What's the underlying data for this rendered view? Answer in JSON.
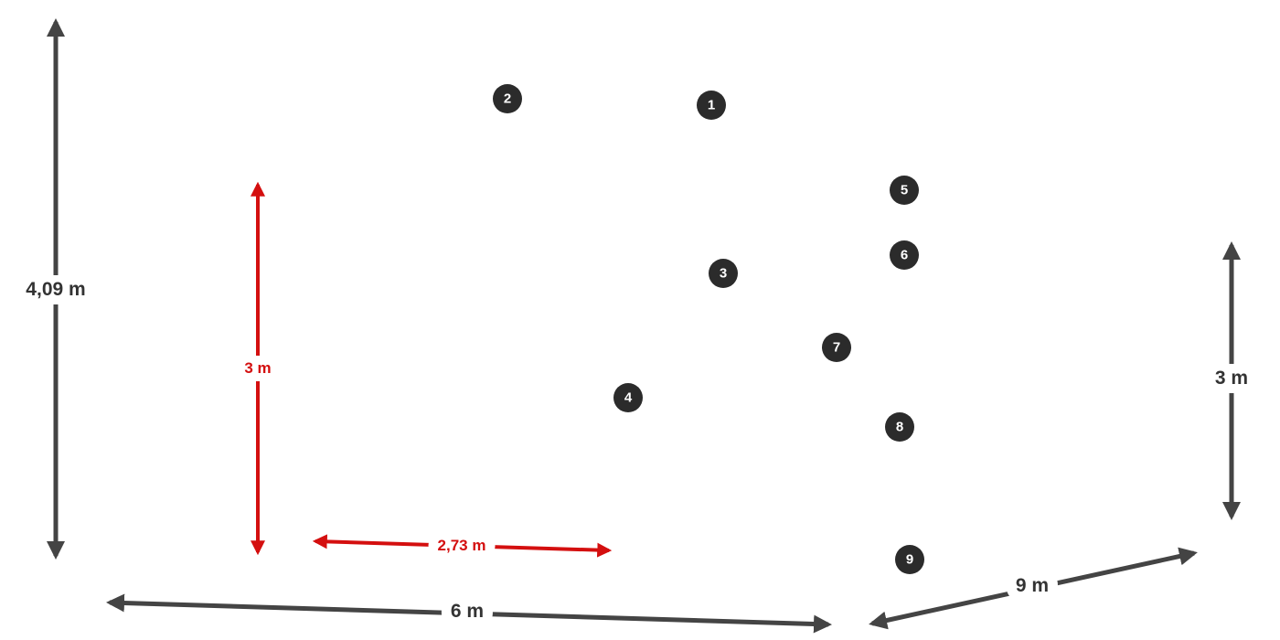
{
  "colors": {
    "dimension_gray": "#444444",
    "dimension_red": "#d40f0f",
    "marker_fill": "#2b2b2b"
  },
  "dimensions": {
    "left_height": "4,09 m",
    "inner_height": "3 m",
    "inner_width": "2,73 m",
    "bottom_width": "6 m",
    "depth": "9 m",
    "right_height": "3 m"
  },
  "markers": [
    "1",
    "2",
    "3",
    "4",
    "5",
    "6",
    "7",
    "8",
    "9"
  ]
}
